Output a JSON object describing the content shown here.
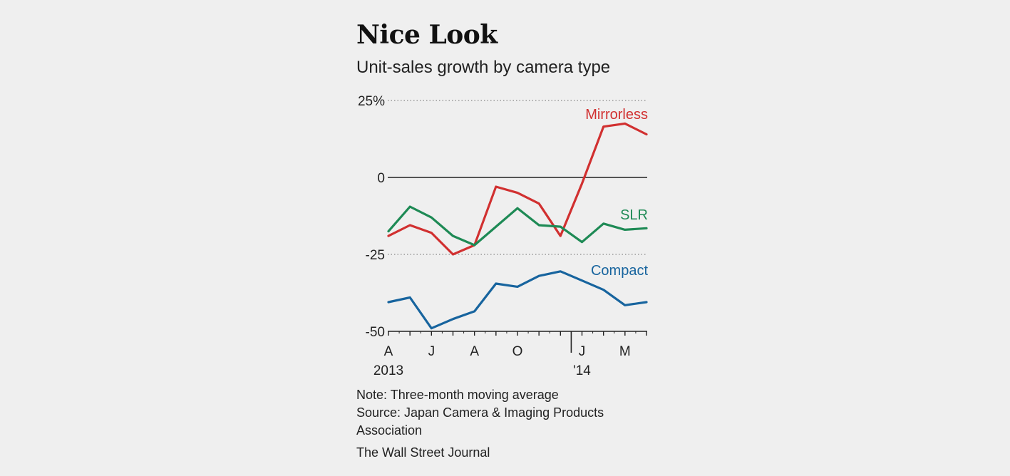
{
  "chart_data": {
    "type": "line",
    "title": "Nice Look",
    "subtitle": "Unit-sales growth by camera type",
    "ylabel": "",
    "xlabel": "",
    "ylim": [
      -50,
      25
    ],
    "yticks": [
      {
        "value": 25,
        "label": "25%"
      },
      {
        "value": 0,
        "label": "0"
      },
      {
        "value": -25,
        "label": "-25"
      },
      {
        "value": -50,
        "label": "-50"
      }
    ],
    "x": [
      "2013-04",
      "2013-05",
      "2013-06",
      "2013-07",
      "2013-08",
      "2013-09",
      "2013-10",
      "2013-11",
      "2013-12",
      "2014-01",
      "2014-02",
      "2014-03",
      "2014-04"
    ],
    "xticks": [
      {
        "index": 0,
        "label": "A",
        "sublabel": "2013"
      },
      {
        "index": 2,
        "label": "J",
        "sublabel": ""
      },
      {
        "index": 4,
        "label": "A",
        "sublabel": ""
      },
      {
        "index": 6,
        "label": "O",
        "sublabel": ""
      },
      {
        "index": 9,
        "label": "J",
        "sublabel": "'14"
      },
      {
        "index": 11,
        "label": "M",
        "sublabel": ""
      }
    ],
    "year_divider_index": 8.5,
    "grid": "dotted",
    "series": [
      {
        "name": "Mirrorless",
        "color": "#d13030",
        "values": [
          -19,
          -15.5,
          -18,
          -25,
          -22,
          -3,
          -5,
          -8.5,
          -19,
          -2,
          16.5,
          17.5,
          14
        ]
      },
      {
        "name": "SLR",
        "color": "#1e8a55",
        "values": [
          -17.5,
          -9.5,
          -13,
          -19,
          -22,
          -16,
          -10,
          -15.5,
          -16,
          -21,
          -15,
          -17,
          -16.5
        ]
      },
      {
        "name": "Compact",
        "color": "#17649e",
        "values": [
          -40.5,
          -39,
          -49,
          -46,
          -43.5,
          -34.5,
          -35.5,
          -32,
          -30.5,
          -33.5,
          -36.5,
          -41.5,
          -40.5
        ]
      }
    ],
    "note": "Note: Three-month moving average",
    "source_line1": "Source: Japan Camera & Imaging Products",
    "source_line2": "Association",
    "credit": "The Wall Street Journal"
  }
}
